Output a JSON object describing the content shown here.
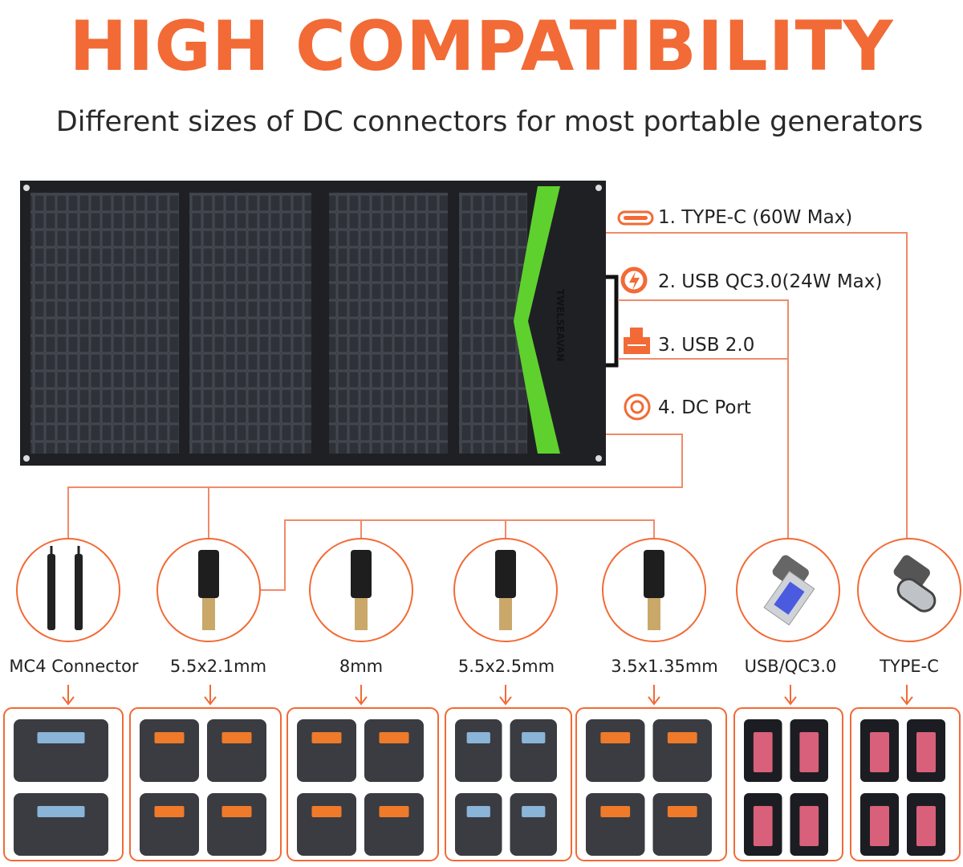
{
  "header": {
    "title": "HIGH COMPATIBILITY",
    "subtitle": "Different sizes of DC connectors for most portable generators"
  },
  "panel": {
    "brand": "TWELSEAVAN"
  },
  "ports": [
    {
      "label": "1. TYPE-C (60W Max)",
      "icon": "usb-c-port-icon"
    },
    {
      "label": "2. USB QC3.0(24W Max)",
      "icon": "quick-charge-icon"
    },
    {
      "label": "3. USB 2.0",
      "icon": "usb-icon"
    },
    {
      "label": "4. DC Port",
      "icon": "dc-port-icon"
    }
  ],
  "connectors": [
    {
      "label": "MC4 Connector",
      "icon": "mc4-connector"
    },
    {
      "label": "5.5x2.1mm",
      "icon": "dc-plug"
    },
    {
      "label": "8mm",
      "icon": "dc-plug"
    },
    {
      "label": "5.5x2.5mm",
      "icon": "dc-plug"
    },
    {
      "label": "3.5x1.35mm",
      "icon": "dc-plug"
    },
    {
      "label": "USB/QC3.0",
      "icon": "usb-a-plug"
    },
    {
      "label": "TYPE-C",
      "icon": "usb-c-plug"
    }
  ],
  "colors": {
    "accent": "#f26a35",
    "line": "#f08a6a",
    "panel": "#2b2d31",
    "stripe": "#5fd12e"
  }
}
